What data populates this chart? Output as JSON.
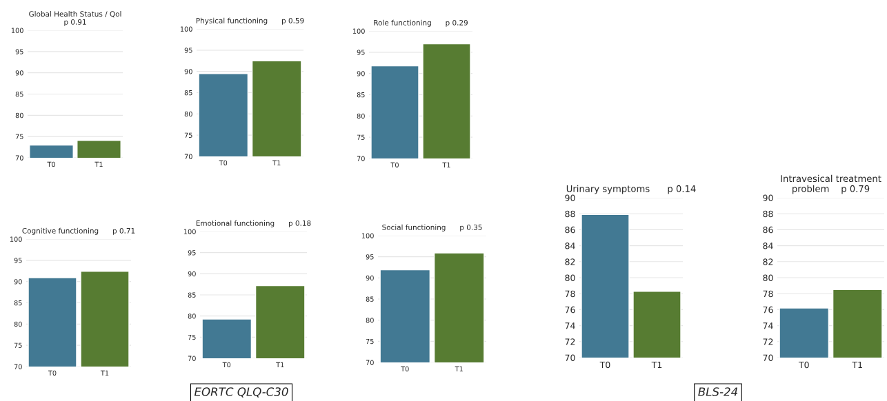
{
  "chart_data": [
    {
      "type": "bar",
      "title": "Global Health Status / Qol\np 0.91",
      "categories": [
        "T0",
        "T1"
      ],
      "values": [
        73.0,
        74.1
      ],
      "colors": [
        "#347ea1",
        "#578826"
      ],
      "ylim": [
        70,
        100
      ],
      "yticks": [
        70,
        75,
        80,
        85,
        90,
        95,
        100
      ],
      "grid": "y"
    },
    {
      "type": "bar",
      "title": "Physical functioning      p 0.59",
      "categories": [
        "T0",
        "T1"
      ],
      "values": [
        89.5,
        92.5
      ],
      "colors": [
        "#347ea1",
        "#578826"
      ],
      "ylim": [
        70,
        100
      ],
      "yticks": [
        70,
        75,
        80,
        85,
        90,
        95,
        100
      ],
      "grid": "y"
    },
    {
      "type": "bar",
      "title": "Role functioning      p 0.29",
      "categories": [
        "T0",
        "T1"
      ],
      "values": [
        91.8,
        97.0
      ],
      "colors": [
        "#347ea1",
        "#578826"
      ],
      "ylim": [
        70,
        100
      ],
      "yticks": [
        70,
        75,
        80,
        85,
        90,
        95,
        100
      ],
      "grid": "y"
    },
    {
      "type": "bar",
      "title": "Cognitive functioning      p 0.71",
      "categories": [
        "T0",
        "T1"
      ],
      "values": [
        90.9,
        92.4
      ],
      "colors": [
        "#347ea1",
        "#578826"
      ],
      "ylim": [
        70,
        100
      ],
      "yticks": [
        70,
        75,
        80,
        85,
        90,
        95,
        100
      ],
      "grid": "y"
    },
    {
      "type": "bar",
      "title": "Emotional functioning      p 0.18",
      "categories": [
        "T0",
        "T1"
      ],
      "values": [
        79.3,
        87.2
      ],
      "colors": [
        "#347ea1",
        "#578826"
      ],
      "ylim": [
        70,
        100
      ],
      "yticks": [
        70,
        75,
        80,
        85,
        90,
        95,
        100
      ],
      "grid": "y",
      "annotations": [
        "EORTC QLQ-C30"
      ]
    },
    {
      "type": "bar",
      "title": "Social functioning      p 0.35",
      "categories": [
        "T0",
        "T1"
      ],
      "values": [
        91.9,
        95.9
      ],
      "colors": [
        "#347ea1",
        "#578826"
      ],
      "ylim": [
        70,
        100
      ],
      "yticks": [
        70,
        75,
        80,
        85,
        90,
        95,
        100
      ],
      "grid": "y"
    },
    {
      "type": "bar",
      "title": "Urinary symptoms      p 0.14",
      "categories": [
        "T0",
        "T1"
      ],
      "values": [
        87.9,
        78.3
      ],
      "colors": [
        "#347ea1",
        "#578826"
      ],
      "ylim": [
        70,
        90
      ],
      "yticks": [
        70,
        72,
        74,
        76,
        78,
        80,
        82,
        84,
        86,
        88,
        90
      ],
      "grid": "y"
    },
    {
      "type": "bar",
      "title": "Intravesical treatment\nproblem    p 0.79",
      "categories": [
        "T0",
        "T1"
      ],
      "values": [
        76.2,
        78.5
      ],
      "colors": [
        "#347ea1",
        "#578826"
      ],
      "ylim": [
        70,
        90
      ],
      "yticks": [
        70,
        72,
        74,
        76,
        78,
        80,
        82,
        84,
        86,
        88,
        90
      ],
      "grid": "y",
      "annotations": [
        "BLS-24"
      ]
    }
  ]
}
